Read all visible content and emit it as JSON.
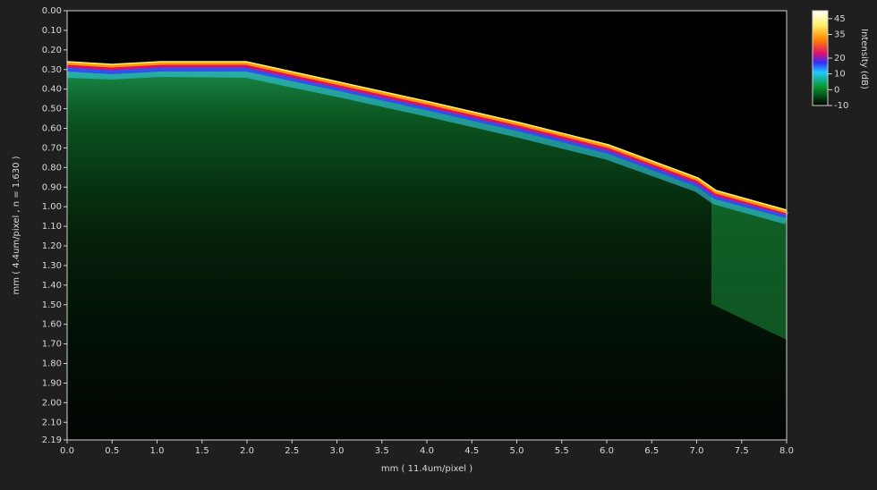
{
  "chart_data": {
    "type": "image",
    "x_label": "mm ( 11.4um/pixel )",
    "y_label": "mm ( 4.4um/pixel , n = 1.630 )",
    "xlim": [
      0,
      8
    ],
    "xticks": [
      {
        "value": 0,
        "label": "0.0"
      },
      0.5,
      {
        "value": 1,
        "label": "1.0"
      },
      1.5,
      {
        "value": 2,
        "label": "2.0"
      },
      2.5,
      {
        "value": 3,
        "label": "3.0"
      },
      3.5,
      {
        "value": 4,
        "label": "4.0"
      },
      4.5,
      {
        "value": 5,
        "label": "5.0"
      },
      5.5,
      {
        "value": 6,
        "label": "6.0"
      },
      6.5,
      {
        "value": 7,
        "label": "7.0"
      },
      7.5,
      {
        "value": 8,
        "label": "8.0"
      }
    ],
    "ylim": [
      0,
      2.19
    ],
    "y_inverted": true,
    "yticks": [
      {
        "value": 0,
        "label": "0.00"
      },
      {
        "value": 0.1,
        "label": "0.10"
      },
      {
        "value": 0.2,
        "label": "0.20"
      },
      {
        "value": 0.3,
        "label": "0.30"
      },
      {
        "value": 0.4,
        "label": "0.40"
      },
      {
        "value": 0.5,
        "label": "0.50"
      },
      {
        "value": 0.6,
        "label": "0.60"
      },
      {
        "value": 0.7,
        "label": "0.70"
      },
      {
        "value": 0.8,
        "label": "0.80"
      },
      {
        "value": 0.9,
        "label": "0.90"
      },
      {
        "value": 1,
        "label": "1.00"
      },
      {
        "value": 1.1,
        "label": "1.10"
      },
      {
        "value": 1.2,
        "label": "1.20"
      },
      {
        "value": 1.3,
        "label": "1.30"
      },
      {
        "value": 1.4,
        "label": "1.40"
      },
      {
        "value": 1.5,
        "label": "1.50"
      },
      {
        "value": 1.6,
        "label": "1.60"
      },
      {
        "value": 1.7,
        "label": "1.70"
      },
      {
        "value": 1.8,
        "label": "1.80"
      },
      {
        "value": 1.9,
        "label": "1.90"
      },
      {
        "value": 2,
        "label": "2.00"
      },
      {
        "value": 2.1,
        "label": "2.10"
      },
      2.19
    ],
    "colorbar": {
      "label": "Intensity (dB)",
      "clim": [
        -10,
        50
      ],
      "ticks": [
        45,
        35,
        20,
        10,
        0,
        -10
      ]
    }
  }
}
